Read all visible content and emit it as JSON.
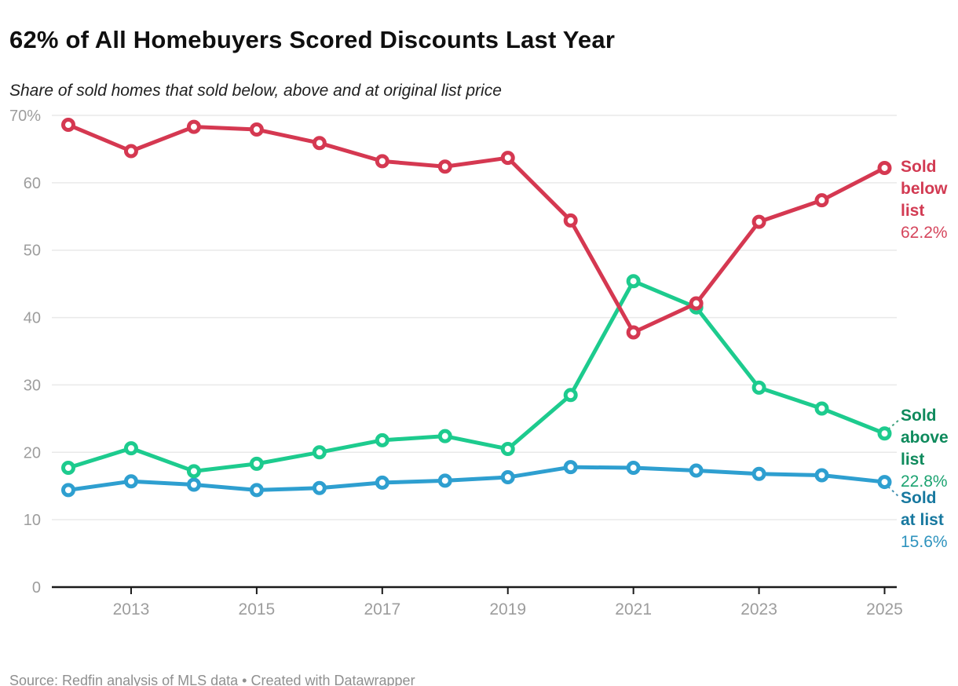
{
  "header": {
    "title": "62% of All Homebuyers Scored Discounts Last Year",
    "subtitle": "Share of sold homes that sold below, above and at original list price"
  },
  "footer": {
    "text": "Source: Redfin analysis of MLS data • Created with Datawrapper"
  },
  "colors": {
    "grid": "#e9e9e9",
    "axis_line": "#1a1a1a",
    "tick_label": "#9d9d9d",
    "background": "#ffffff"
  },
  "chart_data": {
    "type": "line",
    "title": "62% of All Homebuyers Scored Discounts Last Year",
    "subtitle": "Share of sold homes that sold below, above and at original list price",
    "x": [
      2012,
      2013,
      2014,
      2015,
      2016,
      2017,
      2018,
      2019,
      2020,
      2021,
      2022,
      2023,
      2024,
      2025
    ],
    "x_tick_labels": [
      "2013",
      "2015",
      "2017",
      "2019",
      "2021",
      "2023",
      "2025"
    ],
    "y_ticks": [
      0,
      10,
      20,
      30,
      40,
      50,
      60,
      70
    ],
    "y_tick_labels": [
      "0",
      "10",
      "20",
      "30",
      "40",
      "50",
      "60",
      "70%"
    ],
    "ylim": [
      0,
      70
    ],
    "grid": "horizontal",
    "legend_position": "right-edge-labels",
    "marker": "open-circle",
    "series": [
      {
        "name": "Sold below list",
        "color": "#d53851",
        "label_color": "#d23a52",
        "value_color": "#d5455c",
        "label_lines": [
          "Sold",
          "below",
          "list"
        ],
        "value_label": "62.2%",
        "values": [
          68.6,
          64.7,
          68.3,
          67.9,
          65.9,
          63.2,
          62.4,
          63.7,
          54.4,
          37.8,
          42.1,
          54.2,
          57.4,
          62.2
        ]
      },
      {
        "name": "Sold above list",
        "color": "#1dcb8e",
        "label_color": "#0e8a5c",
        "value_color": "#1ca371",
        "label_lines": [
          "Sold",
          "above",
          "list"
        ],
        "value_label": "22.8%",
        "values": [
          17.7,
          20.6,
          17.2,
          18.3,
          20.0,
          21.8,
          22.4,
          20.5,
          28.5,
          45.4,
          41.5,
          29.6,
          26.5,
          22.8
        ]
      },
      {
        "name": "Sold at list",
        "color": "#2e9fd0",
        "label_color": "#17789f",
        "value_color": "#2e93be",
        "label_lines": [
          "Sold",
          "at list"
        ],
        "value_label": "15.6%",
        "values": [
          14.4,
          15.7,
          15.2,
          14.4,
          14.7,
          15.5,
          15.8,
          16.3,
          17.8,
          17.7,
          17.3,
          16.8,
          16.6,
          15.6
        ]
      }
    ]
  }
}
